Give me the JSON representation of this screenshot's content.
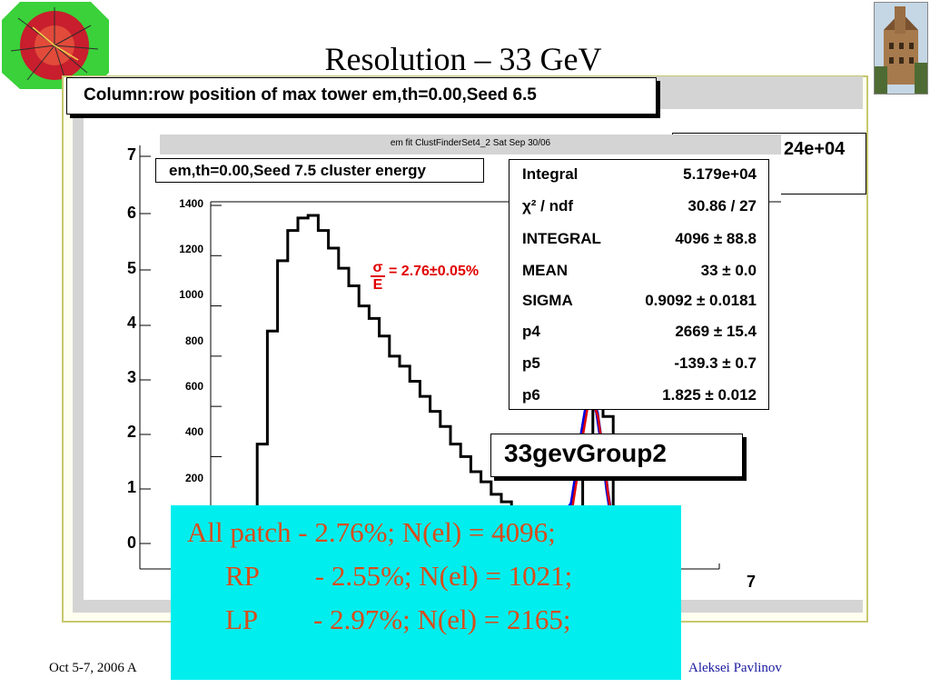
{
  "slide": {
    "title": "Resolution –  33 GeV",
    "footer_left": "Oct 5-7, 2006  A",
    "footer_right": "Aleksei Pavlinov"
  },
  "back_panel": {
    "title": "Column:row position of max tower em,th=0.00,Seed  6.5",
    "stat_fragment": "24e+04",
    "y_ticks": [
      "7",
      "6",
      "5",
      "4",
      "3",
      "2",
      "1",
      "0"
    ],
    "x_tick": "7"
  },
  "front_panel": {
    "header": "em fit ClustFinderSet4_2     Sat Sep 30/06",
    "title": "em,th=0.00,Seed  7.5 cluster energy",
    "sigma_symbol": "σ",
    "energy_symbol": "E",
    "sigma_value": "= 2.76±0.05%",
    "group_label": "33gevGroup2",
    "stats": [
      {
        "name": "Integral",
        "value": "5.179e+04"
      },
      {
        "name": "χ² / ndf",
        "value": "30.86 / 27"
      },
      {
        "name": "INTEGRAL",
        "value": "4096 ± 88.8"
      },
      {
        "name": "MEAN",
        "value": "33 ± 0.0"
      },
      {
        "name": "SIGMA",
        "value": "0.9092 ± 0.0181"
      },
      {
        "name": "p4",
        "value": "2669 ± 15.4"
      },
      {
        "name": "p5",
        "value": "-139.3 ± 0.7"
      },
      {
        "name": "p6",
        "value": "1.825 ± 0.012"
      }
    ]
  },
  "notes": {
    "line1": "All patch - 2.76%; N(el) = 4096;",
    "line2": "RP        - 2.55%; N(el) = 1021;",
    "line3": "LP        - 2.97%; N(el) = 2165;"
  },
  "colors": {
    "histogram": "#000000",
    "fit_red": "#e00000",
    "fit_blue": "#0000dd",
    "notes_background": "#00eeee",
    "notes_text": "#d94c1a"
  },
  "chart_data": {
    "type": "line",
    "title": "em,th=0.00,Seed  7.5 cluster energy",
    "xlabel": "",
    "ylabel": "",
    "y_ticks": [
      200,
      400,
      600,
      800,
      1000,
      1200,
      1400
    ],
    "ylim": [
      0,
      1400
    ],
    "grid": false,
    "series": [
      {
        "name": "",
        "color": "#000000",
        "points_note": "approximate histogram shape (relative x 0-1, counts)",
        "x": [
          0.0,
          0.02,
          0.04,
          0.06,
          0.08,
          0.1,
          0.12,
          0.14,
          0.16,
          0.18,
          0.2,
          0.22,
          0.24,
          0.26,
          0.28,
          0.3,
          0.32,
          0.34,
          0.36,
          0.38,
          0.4,
          0.42,
          0.44,
          0.46,
          0.48,
          0.5,
          0.52,
          0.54,
          0.56,
          0.58,
          0.6,
          0.62,
          0.64,
          0.66,
          0.68,
          0.7,
          0.72,
          0.74,
          0.76
        ],
        "y": [
          0,
          450,
          900,
          1180,
          1300,
          1350,
          1360,
          1300,
          1230,
          1150,
          1080,
          1000,
          950,
          880,
          800,
          760,
          700,
          640,
          580,
          520,
          450,
          400,
          340,
          300,
          250,
          220,
          190,
          180,
          170,
          160,
          140,
          130,
          150,
          420,
          650,
          560,
          200,
          60,
          0
        ]
      },
      {
        "name": "",
        "color": "#e00000",
        "x": [
          0.6,
          0.62,
          0.64,
          0.65,
          0.66,
          0.67,
          0.68,
          0.69,
          0.7,
          0.71,
          0.72,
          0.74
        ],
        "y": [
          130,
          140,
          200,
          330,
          480,
          600,
          620,
          560,
          420,
          250,
          120,
          40
        ]
      }
    ]
  }
}
